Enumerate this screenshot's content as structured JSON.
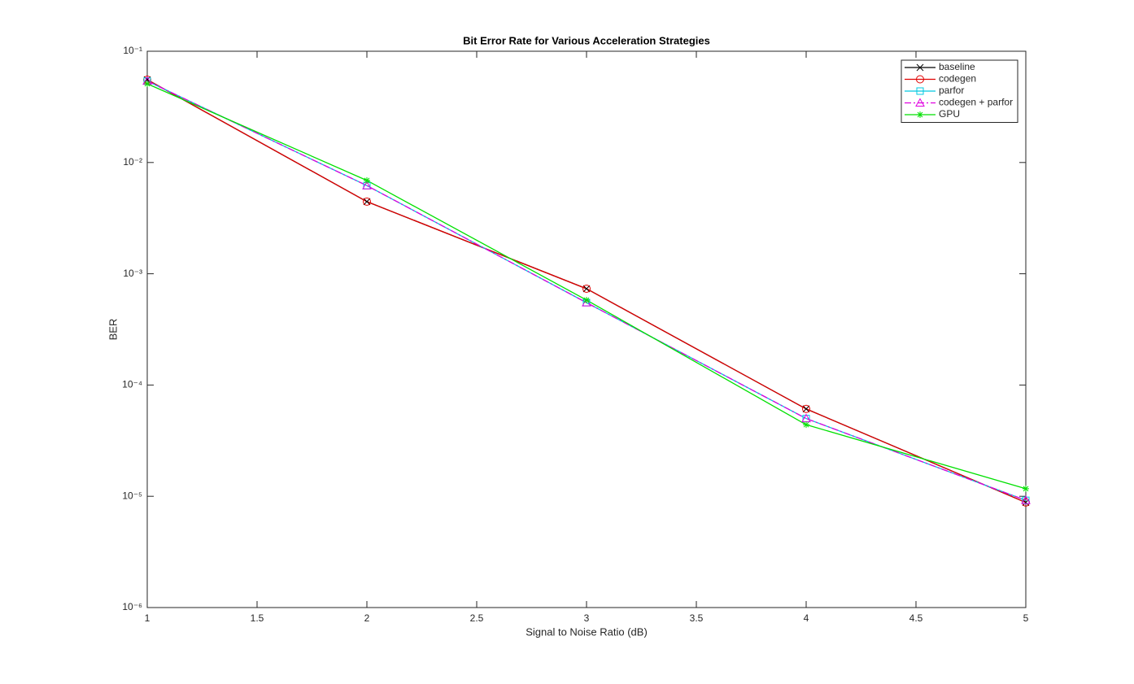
{
  "chart_data": {
    "type": "line",
    "title": "Bit Error Rate for Various Acceleration Strategies",
    "x_label": "Signal to Noise Ratio (dB)",
    "y_label": "BER",
    "log_y": true,
    "legend_position": "upper right",
    "x": [
      1,
      2,
      3,
      4,
      5
    ],
    "xlim": [
      1,
      5
    ],
    "xticks": [
      1,
      1.5,
      2,
      2.5,
      3,
      3.5,
      4,
      4.5,
      5
    ],
    "ylim": [
      1e-06,
      0.1
    ],
    "yticks": [
      {
        "value": 0.1,
        "label": "10⁻¹"
      },
      {
        "value": 0.01,
        "label": "10⁻²"
      },
      {
        "value": 0.001,
        "label": "10⁻³"
      },
      {
        "value": 0.0001,
        "label": "10⁻⁴"
      },
      {
        "value": 1e-05,
        "label": "10⁻⁵"
      },
      {
        "value": 1e-06,
        "label": "10⁻⁶"
      }
    ],
    "series": [
      {
        "name": "baseline",
        "color": "#000000",
        "marker": "x",
        "dash": "solid",
        "values": [
          0.0555,
          0.00445,
          0.000734,
          6.1e-05,
          8.8e-06
        ]
      },
      {
        "name": "codegen",
        "color": "#e00000",
        "marker": "circle",
        "dash": "solid",
        "values": [
          0.0555,
          0.00445,
          0.000734,
          6.1e-05,
          8.8e-06
        ]
      },
      {
        "name": "parfor",
        "color": "#00c8e0",
        "marker": "square",
        "dash": "solid",
        "values": [
          0.054,
          0.0062,
          0.00055,
          5e-05,
          9.2e-06
        ]
      },
      {
        "name": "codegen + parfor",
        "color": "#e000e0",
        "marker": "triangle",
        "dash": "dashdot",
        "values": [
          0.054,
          0.0062,
          0.00055,
          5e-05,
          9.2e-06
        ]
      },
      {
        "name": "GPU",
        "color": "#00e000",
        "marker": "asterisk",
        "dash": "solid",
        "values": [
          0.051,
          0.0069,
          0.00058,
          4.4e-05,
          1.17e-05
        ]
      }
    ]
  }
}
